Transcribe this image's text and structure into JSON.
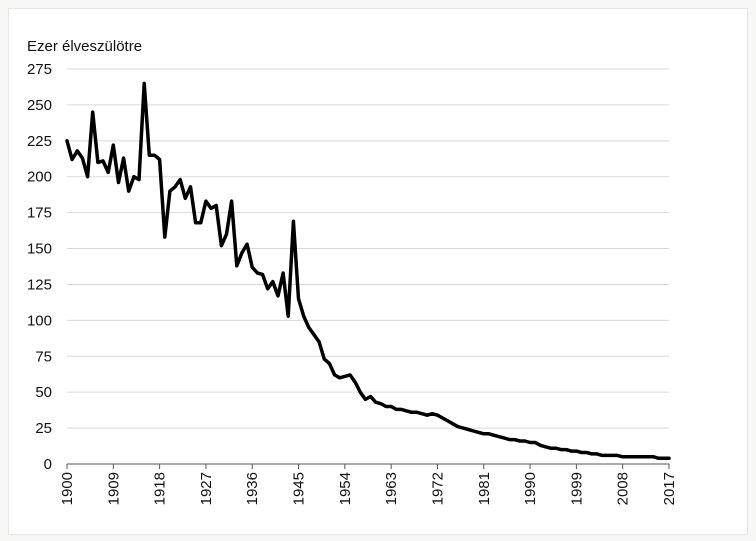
{
  "chart_data": {
    "type": "line",
    "title": "",
    "ylabel": "Ezer élveszülötre",
    "xlabel": "",
    "ylim": [
      0,
      275
    ],
    "xlim": [
      1900,
      2017
    ],
    "grid": true,
    "line_color": "#000000",
    "grid_color": "#d9d9d9",
    "yticks": [
      0,
      25,
      50,
      75,
      100,
      125,
      150,
      175,
      200,
      225,
      250,
      275
    ],
    "xticks": [
      1900,
      1909,
      1918,
      1927,
      1936,
      1945,
      1954,
      1963,
      1972,
      1981,
      1990,
      1999,
      2008,
      2017
    ],
    "series": [
      {
        "name": "",
        "x": [
          1900,
          1901,
          1902,
          1903,
          1904,
          1905,
          1906,
          1907,
          1908,
          1909,
          1910,
          1911,
          1912,
          1913,
          1914,
          1915,
          1916,
          1917,
          1918,
          1919,
          1920,
          1921,
          1922,
          1923,
          1924,
          1925,
          1926,
          1927,
          1928,
          1929,
          1930,
          1931,
          1932,
          1933,
          1934,
          1935,
          1936,
          1937,
          1938,
          1939,
          1940,
          1941,
          1942,
          1943,
          1944,
          1945,
          1946,
          1947,
          1948,
          1949,
          1950,
          1951,
          1952,
          1953,
          1954,
          1955,
          1956,
          1957,
          1958,
          1959,
          1960,
          1961,
          1962,
          1963,
          1964,
          1965,
          1966,
          1967,
          1968,
          1969,
          1970,
          1971,
          1972,
          1973,
          1974,
          1975,
          1976,
          1977,
          1978,
          1979,
          1980,
          1981,
          1982,
          1983,
          1984,
          1985,
          1986,
          1987,
          1988,
          1989,
          1990,
          1991,
          1992,
          1993,
          1994,
          1995,
          1996,
          1997,
          1998,
          1999,
          2000,
          2001,
          2002,
          2003,
          2004,
          2005,
          2006,
          2007,
          2008,
          2009,
          2010,
          2011,
          2012,
          2013,
          2014,
          2015,
          2016,
          2017
        ],
        "values": [
          225,
          212,
          218,
          213,
          200,
          245,
          210,
          211,
          203,
          222,
          196,
          213,
          190,
          200,
          198,
          265,
          215,
          215,
          212,
          158,
          190,
          193,
          198,
          185,
          193,
          168,
          168,
          183,
          178,
          180,
          152,
          160,
          183,
          138,
          147,
          153,
          137,
          133,
          132,
          122,
          127,
          117,
          133,
          103,
          169,
          115,
          103,
          95,
          90,
          85,
          73,
          70,
          62,
          60,
          61,
          62,
          57,
          50,
          45,
          47,
          43,
          42,
          40,
          40,
          38,
          38,
          37,
          36,
          36,
          35,
          34,
          35,
          34,
          32,
          30,
          28,
          26,
          25,
          24,
          23,
          22,
          21,
          21,
          20,
          19,
          18,
          17,
          17,
          16,
          16,
          15,
          15,
          13,
          12,
          11,
          11,
          10,
          10,
          9,
          9,
          8,
          8,
          7,
          7,
          6,
          6,
          6,
          6,
          5,
          5,
          5,
          5,
          5,
          5,
          5,
          4,
          4,
          4
        ]
      }
    ]
  }
}
